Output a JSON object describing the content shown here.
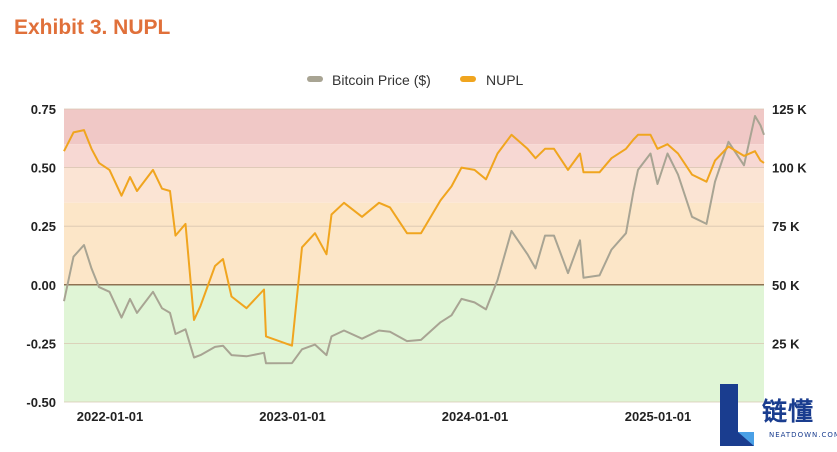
{
  "title": "Exhibit 3. NUPL",
  "logo": {
    "cn": "链懂",
    "en": "NEATDOWN.COM"
  },
  "chart_data": {
    "type": "line",
    "x_ticks": [
      "2022-01-01",
      "2023-01-01",
      "2024-01-01",
      "2025-01-01"
    ],
    "y_left_ticks": [
      "0.75",
      "0.50",
      "0.25",
      "0.00",
      "-0.25",
      "-0.50"
    ],
    "y_right_ticks": [
      "125 K",
      "100 K",
      "75 K",
      "50 K",
      "25 K"
    ],
    "y_left_range": [
      -0.5,
      0.75
    ],
    "y_right_range": [
      0,
      125000
    ],
    "x_range": [
      "2021-10-01",
      "2025-08-01"
    ],
    "legend_position": "top-center",
    "zones": [
      {
        "from": 0.6,
        "to": 0.75,
        "color": "#f0c8c6"
      },
      {
        "from": 0.5,
        "to": 0.6,
        "color": "#f7d8d3"
      },
      {
        "from": 0.35,
        "to": 0.5,
        "color": "#fbe4d4"
      },
      {
        "from": 0.0,
        "to": 0.35,
        "color": "#fce6c8"
      },
      {
        "from": -0.5,
        "to": 0.0,
        "color": "#e0f5d6"
      }
    ],
    "series": [
      {
        "name": "Bitcoin Price ($)",
        "axis": "right",
        "color": "#a8a493",
        "points": [
          [
            "2021-10-01",
            43000
          ],
          [
            "2021-10-20",
            62000
          ],
          [
            "2021-11-10",
            67000
          ],
          [
            "2021-11-25",
            57000
          ],
          [
            "2021-12-10",
            49000
          ],
          [
            "2021-12-31",
            47000
          ],
          [
            "2022-01-24",
            36000
          ],
          [
            "2022-02-10",
            44000
          ],
          [
            "2022-02-24",
            38000
          ],
          [
            "2022-03-28",
            47000
          ],
          [
            "2022-04-15",
            40000
          ],
          [
            "2022-05-01",
            38000
          ],
          [
            "2022-05-12",
            29000
          ],
          [
            "2022-06-01",
            31000
          ],
          [
            "2022-06-18",
            19000
          ],
          [
            "2022-07-01",
            20000
          ],
          [
            "2022-07-30",
            23500
          ],
          [
            "2022-08-15",
            24000
          ],
          [
            "2022-09-01",
            20000
          ],
          [
            "2022-10-01",
            19500
          ],
          [
            "2022-11-05",
            21000
          ],
          [
            "2022-11-09",
            16500
          ],
          [
            "2022-12-31",
            16600
          ],
          [
            "2023-01-20",
            22500
          ],
          [
            "2023-02-15",
            24500
          ],
          [
            "2023-03-10",
            20000
          ],
          [
            "2023-03-20",
            28000
          ],
          [
            "2023-04-14",
            30500
          ],
          [
            "2023-05-20",
            27000
          ],
          [
            "2023-06-23",
            30500
          ],
          [
            "2023-07-15",
            30000
          ],
          [
            "2023-08-18",
            26000
          ],
          [
            "2023-09-15",
            26500
          ],
          [
            "2023-10-24",
            34000
          ],
          [
            "2023-11-15",
            37000
          ],
          [
            "2023-12-05",
            44000
          ],
          [
            "2023-12-31",
            42500
          ],
          [
            "2024-01-23",
            39500
          ],
          [
            "2024-02-15",
            52000
          ],
          [
            "2024-03-14",
            73000
          ],
          [
            "2024-04-15",
            63000
          ],
          [
            "2024-05-01",
            57000
          ],
          [
            "2024-05-20",
            71000
          ],
          [
            "2024-06-07",
            71000
          ],
          [
            "2024-07-05",
            55000
          ],
          [
            "2024-07-29",
            69000
          ],
          [
            "2024-08-05",
            53000
          ],
          [
            "2024-09-06",
            54000
          ],
          [
            "2024-09-30",
            65000
          ],
          [
            "2024-10-29",
            72000
          ],
          [
            "2024-11-13",
            90000
          ],
          [
            "2024-11-22",
            99000
          ],
          [
            "2024-12-17",
            106000
          ],
          [
            "2024-12-31",
            93000
          ],
          [
            "2025-01-20",
            106000
          ],
          [
            "2025-02-10",
            97000
          ],
          [
            "2025-03-10",
            79000
          ],
          [
            "2025-04-08",
            76000
          ],
          [
            "2025-04-25",
            94000
          ],
          [
            "2025-05-22",
            111000
          ],
          [
            "2025-06-22",
            101000
          ],
          [
            "2025-07-14",
            122000
          ],
          [
            "2025-07-25",
            118000
          ],
          [
            "2025-08-01",
            114000
          ]
        ]
      },
      {
        "name": "NUPL",
        "axis": "left",
        "color": "#f0a51f",
        "points": [
          [
            "2021-10-01",
            0.57
          ],
          [
            "2021-10-20",
            0.65
          ],
          [
            "2021-11-10",
            0.66
          ],
          [
            "2021-11-25",
            0.58
          ],
          [
            "2021-12-10",
            0.52
          ],
          [
            "2021-12-31",
            0.49
          ],
          [
            "2022-01-24",
            0.38
          ],
          [
            "2022-02-10",
            0.46
          ],
          [
            "2022-02-24",
            0.4
          ],
          [
            "2022-03-28",
            0.49
          ],
          [
            "2022-04-15",
            0.41
          ],
          [
            "2022-05-01",
            0.4
          ],
          [
            "2022-05-12",
            0.21
          ],
          [
            "2022-06-01",
            0.26
          ],
          [
            "2022-06-18",
            -0.15
          ],
          [
            "2022-07-01",
            -0.09
          ],
          [
            "2022-07-30",
            0.08
          ],
          [
            "2022-08-15",
            0.11
          ],
          [
            "2022-09-01",
            -0.05
          ],
          [
            "2022-10-01",
            -0.1
          ],
          [
            "2022-11-05",
            -0.02
          ],
          [
            "2022-11-09",
            -0.22
          ],
          [
            "2022-12-31",
            -0.26
          ],
          [
            "2023-01-20",
            0.16
          ],
          [
            "2023-02-15",
            0.22
          ],
          [
            "2023-03-10",
            0.13
          ],
          [
            "2023-03-20",
            0.3
          ],
          [
            "2023-04-14",
            0.35
          ],
          [
            "2023-05-20",
            0.29
          ],
          [
            "2023-06-23",
            0.35
          ],
          [
            "2023-07-15",
            0.33
          ],
          [
            "2023-08-18",
            0.22
          ],
          [
            "2023-09-15",
            0.22
          ],
          [
            "2023-10-24",
            0.36
          ],
          [
            "2023-11-15",
            0.42
          ],
          [
            "2023-12-05",
            0.5
          ],
          [
            "2023-12-31",
            0.49
          ],
          [
            "2024-01-23",
            0.45
          ],
          [
            "2024-02-15",
            0.56
          ],
          [
            "2024-03-14",
            0.64
          ],
          [
            "2024-04-15",
            0.58
          ],
          [
            "2024-05-01",
            0.54
          ],
          [
            "2024-05-20",
            0.58
          ],
          [
            "2024-06-07",
            0.58
          ],
          [
            "2024-07-05",
            0.49
          ],
          [
            "2024-07-29",
            0.56
          ],
          [
            "2024-08-05",
            0.48
          ],
          [
            "2024-09-06",
            0.48
          ],
          [
            "2024-09-30",
            0.54
          ],
          [
            "2024-10-29",
            0.58
          ],
          [
            "2024-11-13",
            0.62
          ],
          [
            "2024-11-22",
            0.64
          ],
          [
            "2024-12-17",
            0.64
          ],
          [
            "2024-12-31",
            0.58
          ],
          [
            "2025-01-20",
            0.6
          ],
          [
            "2025-02-10",
            0.56
          ],
          [
            "2025-03-10",
            0.47
          ],
          [
            "2025-04-08",
            0.44
          ],
          [
            "2025-04-25",
            0.53
          ],
          [
            "2025-05-22",
            0.59
          ],
          [
            "2025-06-22",
            0.55
          ],
          [
            "2025-07-14",
            0.57
          ],
          [
            "2025-07-25",
            0.53
          ],
          [
            "2025-08-01",
            0.52
          ]
        ]
      }
    ]
  }
}
